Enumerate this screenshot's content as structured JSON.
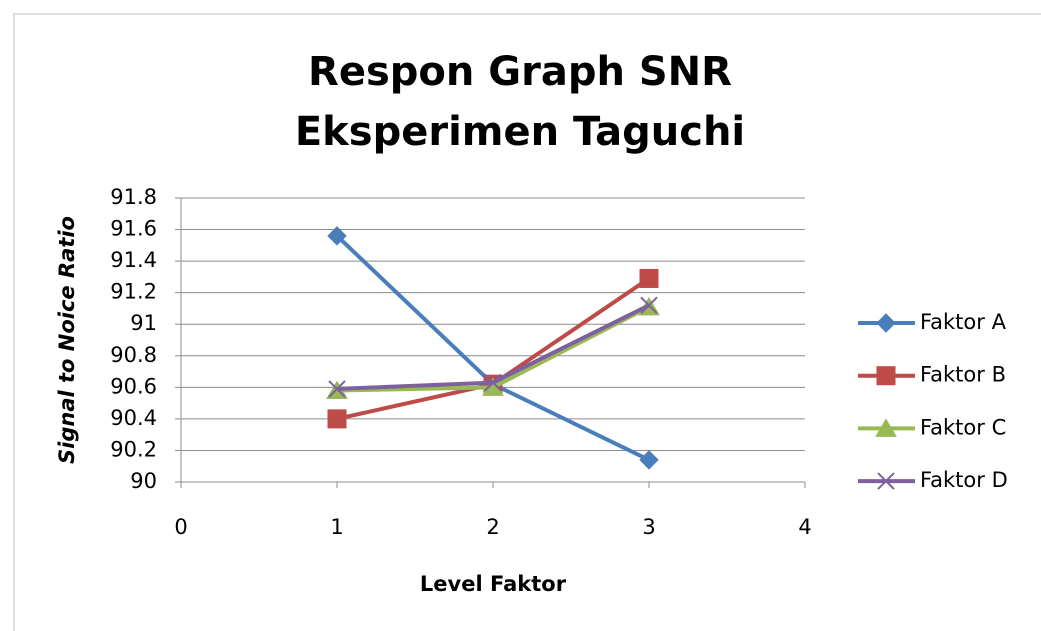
{
  "chart_data": {
    "type": "line",
    "title": "Respon Graph SNR Eksperimen Taguchi",
    "x_label": "Level Faktor",
    "y_label": "Signal to Noice Ratio",
    "x": [
      1,
      2,
      3
    ],
    "series": [
      {
        "name": "Faktor A",
        "color": "#4a7ebb",
        "marker": "diamond",
        "values": [
          91.56,
          90.62,
          90.14
        ]
      },
      {
        "name": "Faktor B",
        "color": "#be4b48",
        "marker": "square",
        "values": [
          90.4,
          90.62,
          91.29
        ]
      },
      {
        "name": "Faktor C",
        "color": "#98b954",
        "marker": "triangle",
        "values": [
          90.58,
          90.6,
          91.11
        ]
      },
      {
        "name": "Faktor D",
        "color": "#7d60a0",
        "marker": "x",
        "values": [
          90.59,
          90.63,
          91.12
        ]
      }
    ],
    "xlim": [
      0,
      4
    ],
    "xticks": [
      0,
      1,
      2,
      3,
      4
    ],
    "ylim": [
      90,
      91.8
    ],
    "yticks": [
      90,
      90.2,
      90.4,
      90.6,
      90.8,
      91,
      91.2,
      91.4,
      91.6,
      91.8
    ],
    "grid": true,
    "legend": "right"
  }
}
